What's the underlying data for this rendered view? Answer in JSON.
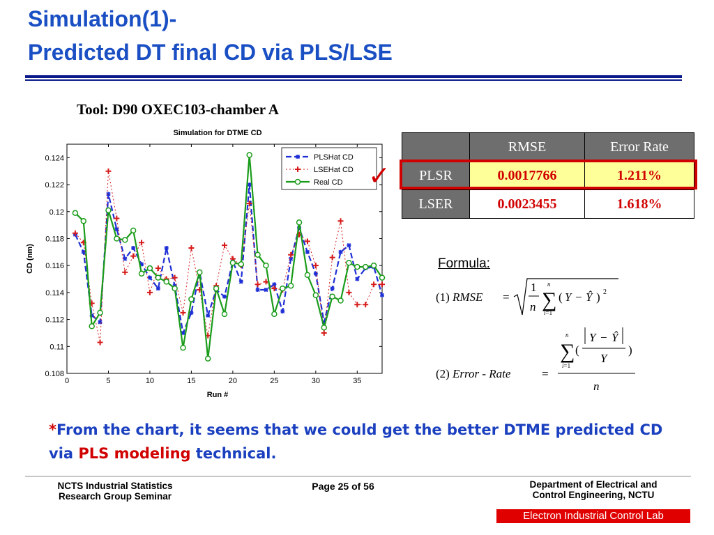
{
  "title": {
    "line1": "Simulation(1)-",
    "line2": "Predicted DT final CD via PLS/LSE"
  },
  "tool_label": "Tool: D90 OXEC103-chamber A",
  "chart_data": {
    "type": "line",
    "title": "Simulation for DTME CD",
    "xlabel": "Run #",
    "ylabel": "CD (nm)",
    "xlim": [
      0,
      38
    ],
    "ylim": [
      0.108,
      0.125
    ],
    "xticks": [
      "0",
      "5",
      "10",
      "15",
      "20",
      "25",
      "30",
      "35"
    ],
    "yticks": [
      "0.108",
      "0.11",
      "0.112",
      "0.114",
      "0.116",
      "0.118",
      "0.12",
      "0.122",
      "0.124"
    ],
    "grid": false,
    "legend_position": "top-right",
    "x": [
      1,
      2,
      3,
      4,
      5,
      6,
      7,
      8,
      9,
      10,
      11,
      12,
      13,
      14,
      15,
      16,
      17,
      18,
      19,
      20,
      21,
      22,
      23,
      24,
      25,
      26,
      27,
      28,
      29,
      30,
      31,
      32,
      33,
      34,
      35,
      36,
      37,
      38
    ],
    "series": [
      {
        "name": "PLSHat CD",
        "color": "#1f2fd6",
        "style": "dashed-star",
        "values": [
          0.1183,
          0.117,
          0.1123,
          0.1118,
          0.1213,
          0.1187,
          0.1165,
          0.1173,
          0.1161,
          0.1151,
          0.1143,
          0.1173,
          0.1145,
          0.111,
          0.1125,
          0.1155,
          0.1123,
          0.1142,
          0.1137,
          0.1163,
          0.1148,
          0.122,
          0.1142,
          0.1142,
          0.1146,
          0.1126,
          0.1165,
          0.1188,
          0.117,
          0.1154,
          0.1118,
          0.1143,
          0.117,
          0.1175,
          0.115,
          0.1158,
          0.1159,
          0.1138
        ]
      },
      {
        "name": "LSEHat CD",
        "color": "#d61a1a",
        "style": "dotted-plus",
        "values": [
          0.1184,
          0.1177,
          0.1132,
          0.1103,
          0.123,
          0.1195,
          0.1155,
          0.1167,
          0.1177,
          0.114,
          0.1158,
          0.115,
          0.1151,
          0.1125,
          0.1173,
          0.1142,
          0.1108,
          0.1145,
          0.1175,
          0.1165,
          0.116,
          0.1206,
          0.1146,
          0.1148,
          0.1143,
          0.1142,
          0.1168,
          0.1183,
          0.1178,
          0.116,
          0.111,
          0.1166,
          0.1193,
          0.114,
          0.1131,
          0.1131,
          0.1146,
          0.1146
        ]
      },
      {
        "name": "Real CD",
        "color": "#1a9c1a",
        "style": "solid-circle",
        "values": [
          0.1199,
          0.1193,
          0.1115,
          0.1125,
          0.1201,
          0.118,
          0.1179,
          0.1186,
          0.1154,
          0.1158,
          0.1151,
          0.1148,
          0.1143,
          0.1099,
          0.1135,
          0.1155,
          0.1091,
          0.1143,
          0.1124,
          0.1162,
          0.1161,
          0.1242,
          0.1168,
          0.116,
          0.1124,
          0.1143,
          0.1145,
          0.1192,
          0.1153,
          0.1138,
          0.1114,
          0.1137,
          0.1134,
          0.1162,
          0.1159,
          0.1159,
          0.116,
          0.1151
        ]
      }
    ]
  },
  "results_table": {
    "headers": [
      "",
      "RMSE",
      "Error Rate"
    ],
    "rows": [
      {
        "label": "PLSR",
        "rmse": "0.0017766",
        "error_rate": "1.211%",
        "highlighted": true
      },
      {
        "label": "LSER",
        "rmse": "0.0023455",
        "error_rate": "1.618%",
        "highlighted": false
      }
    ],
    "header_bg": "#6e6e6e",
    "highlight_color": "#d10000",
    "highlight_fill": "#ffff99"
  },
  "formula": {
    "label": "Formula:",
    "f1_tag": "(1)",
    "f1_name": "RMSE",
    "f2_tag": "(2)",
    "f2_name": "Error - Rate"
  },
  "note": {
    "asterisk": "*",
    "part1": "From the chart, it seems that we could get the better DTME predicted CD via ",
    "highlight": "PLS modeling",
    "part2": " technical."
  },
  "footer": {
    "left_line1": "NCTS Industrial Statistics",
    "left_line2": "Research Group Seminar",
    "page": "Page 25 of 56",
    "right_line1": "Department of Electrical and",
    "right_line2": "Control Engineering, NCTU",
    "lab": "Electron Industrial Control Lab"
  }
}
